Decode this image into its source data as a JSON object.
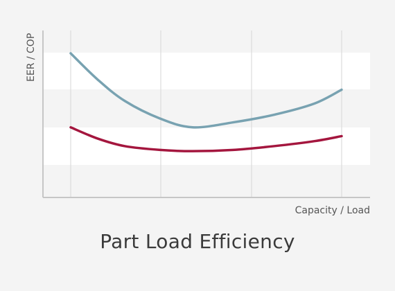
{
  "chart_data": {
    "type": "line",
    "title": "Part Load Efficiency",
    "xlabel": "Capacity / Load",
    "ylabel": "EER / COP",
    "grid": true,
    "x": [
      0,
      0.1,
      0.2,
      0.33,
      0.45,
      0.6,
      0.75,
      0.9,
      1.0
    ],
    "series": [
      {
        "color": "#78a2b1",
        "values": [
          1.0,
          0.79,
          0.62,
          0.48,
          0.41,
          0.45,
          0.51,
          0.6,
          0.71
        ]
      },
      {
        "color": "#a4163e",
        "values": [
          0.41,
          0.32,
          0.26,
          0.23,
          0.22,
          0.23,
          0.26,
          0.3,
          0.34
        ]
      }
    ],
    "ylim": [
      0,
      1.0
    ]
  },
  "colors": {
    "background": "#f4f4f4",
    "band": "#ffffff",
    "gridline": "#d6d6d6",
    "axis": "#c6c6c6"
  }
}
